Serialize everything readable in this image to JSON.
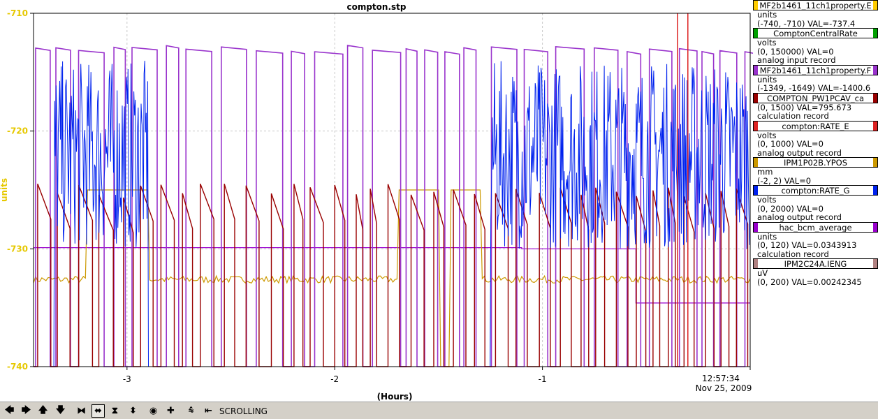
{
  "window": {
    "title": "compton.stp"
  },
  "chart_data": {
    "type": "line",
    "title": "compton.stp",
    "ylabel": "units",
    "xlabel": "(Hours)",
    "ylim": [
      -740,
      -710
    ],
    "xlim": [
      -3.45,
      0
    ],
    "y_ticks": [
      "-710",
      "-720",
      "-730",
      "-740"
    ],
    "x_ticks": [
      "-3",
      "-2",
      "-1"
    ],
    "x_tick_values": [
      -3,
      -2,
      -1
    ],
    "y_tick_values": [
      -710,
      -720,
      -730,
      -740
    ],
    "end_time": "12:57:34",
    "end_date": "Nov 25, 2009",
    "grid": true,
    "legend_placement": "right",
    "series": [
      {
        "name": "MF2b1461_11ch1property.E",
        "color": "#ffcc00"
      },
      {
        "name": "ComptonCentralRate",
        "color": "#00a000"
      },
      {
        "name": "MF2b1461_11ch1property.F",
        "color": "#9933cc"
      },
      {
        "name": "COMPTON_PW1PCAV_ca",
        "color": "#990000"
      },
      {
        "name": "compton:RATE_E",
        "color": "#dd2222"
      },
      {
        "name": "IPM1P02B.YPOS",
        "color": "#cc9900"
      },
      {
        "name": "compton:RATE_G",
        "color": "#0022ee"
      },
      {
        "name": "hac_bcm_average",
        "color": "#9900cc"
      },
      {
        "name": "IPM2C24A.IENG",
        "color": "#b08080"
      }
    ]
  },
  "legend": [
    {
      "name": "MF2b1461_11ch1property.E",
      "color": "#ffcc00",
      "lines": [
        "units",
        "(-740, -710) VAL=-737.4"
      ]
    },
    {
      "name": "ComptonCentralRate",
      "color": "#00a000",
      "lines": [
        "volts",
        "(0, 150000) VAL=0",
        "analog input record"
      ]
    },
    {
      "name": "MF2b1461_11ch1property.F",
      "color": "#9933cc",
      "lines": [
        "units",
        "(-1349, -1649) VAL=-1400.6"
      ]
    },
    {
      "name": "COMPTON_PW1PCAV_ca",
      "color": "#990000",
      "lines": [
        "(0, 1500) VAL=795.673",
        "calculation record"
      ]
    },
    {
      "name": "compton:RATE_E",
      "color": "#dd2222",
      "lines": [
        "volts",
        "(0, 1000) VAL=0",
        "analog output record"
      ]
    },
    {
      "name": "IPM1P02B.YPOS",
      "color": "#cc9900",
      "lines": [
        "mm",
        "(-2, 2) VAL=0"
      ]
    },
    {
      "name": "compton:RATE_G",
      "color": "#0022ee",
      "lines": [
        "volts",
        "(0, 2000) VAL=0",
        "analog output record"
      ]
    },
    {
      "name": "hac_bcm_average",
      "color": "#9900cc",
      "lines": [
        "units",
        "(0, 120) VAL=0.0343913",
        "calculation record"
      ]
    },
    {
      "name": "IPM2C24A.IENG",
      "color": "#b08080",
      "lines": [
        "uV",
        "(0, 200) VAL=0.00242345"
      ]
    }
  ],
  "toolbar": {
    "status": "SCROLLING",
    "buttons": [
      {
        "icon": "arrow-left-icon",
        "glyph": "🡄"
      },
      {
        "icon": "arrow-right-icon",
        "glyph": "🡆"
      },
      {
        "icon": "arrow-up-icon",
        "glyph": "🡅"
      },
      {
        "icon": "arrow-down-icon",
        "glyph": "🡇"
      },
      {
        "icon": "compress-horizontal-icon",
        "glyph": "⧓"
      },
      {
        "icon": "expand-horizontal-icon",
        "glyph": "⬌"
      },
      {
        "icon": "compress-vertical-icon",
        "glyph": "⧗"
      },
      {
        "icon": "expand-vertical-icon",
        "glyph": "⬍"
      },
      {
        "icon": "zoom-fit-icon",
        "glyph": "◉"
      },
      {
        "icon": "crosshair-icon",
        "glyph": "✚"
      },
      {
        "icon": "autoscale-icon",
        "glyph": "⩯"
      },
      {
        "icon": "scroll-latest-icon",
        "glyph": "⇤"
      }
    ]
  }
}
